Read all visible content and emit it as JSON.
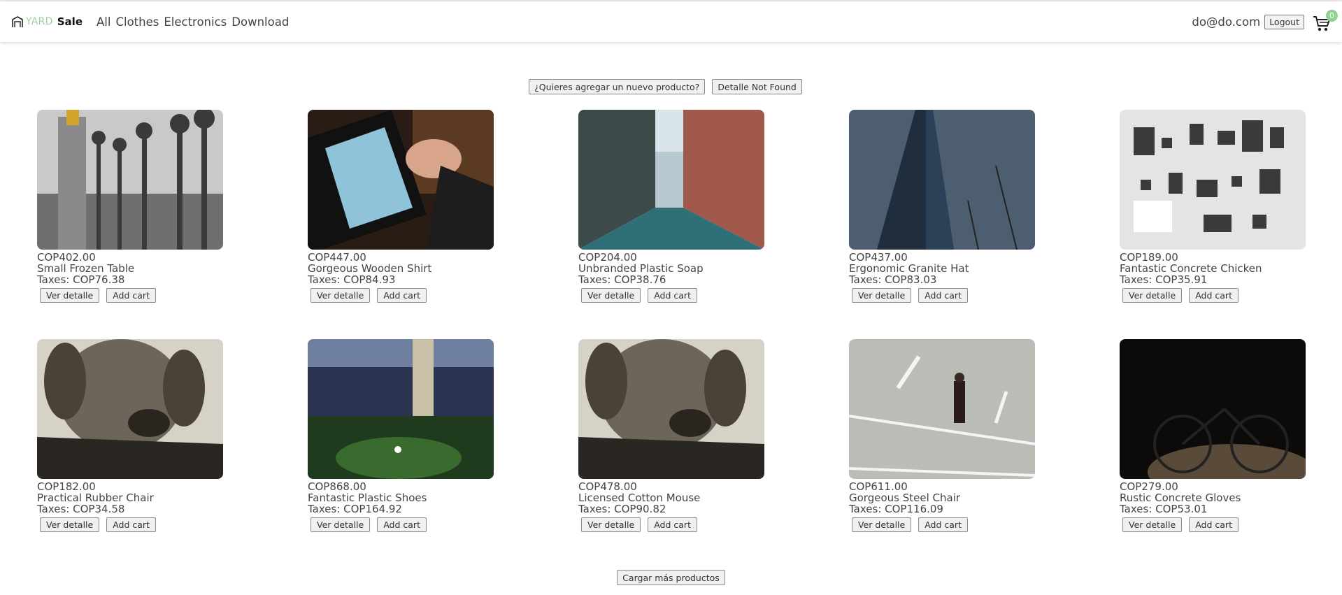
{
  "brand": {
    "yard": "YARD",
    "sale": "Sale"
  },
  "nav": {
    "all": "All",
    "clothes": "Clothes",
    "electronics": "Electronics",
    "download": "Download"
  },
  "user": {
    "email": "do@do.com",
    "logout": "Logout",
    "cart_count": "0"
  },
  "actions": {
    "add_product": "¿Quieres agregar un nuevo producto?",
    "not_found": "Detalle Not Found"
  },
  "card_buttons": {
    "detail": "Ver detalle",
    "add": "Add cart"
  },
  "products": [
    {
      "price": "COP402.00",
      "name": "Small Frozen Table",
      "taxes": "Taxes: COP76.38",
      "image": "lamp-posts-bridge"
    },
    {
      "price": "COP447.00",
      "name": "Gorgeous Wooden Shirt",
      "taxes": "Taxes: COP84.93",
      "image": "hand-on-tablet"
    },
    {
      "price": "COP204.00",
      "name": "Unbranded Plastic Soap",
      "taxes": "Taxes: COP38.76",
      "image": "city-street"
    },
    {
      "price": "COP437.00",
      "name": "Ergonomic Granite Hat",
      "taxes": "Taxes: COP83.03",
      "image": "glass-skyscraper"
    },
    {
      "price": "COP189.00",
      "name": "Fantastic Concrete Chicken",
      "taxes": "Taxes: COP35.91",
      "image": "disassembled-device-parts"
    },
    {
      "price": "COP182.00",
      "name": "Practical Rubber Chair",
      "taxes": "Taxes: COP34.58",
      "image": "dog-on-box"
    },
    {
      "price": "COP868.00",
      "name": "Fantastic Plastic Shoes",
      "taxes": "Taxes: COP164.92",
      "image": "golfer-at-night"
    },
    {
      "price": "COP478.00",
      "name": "Licensed Cotton Mouse",
      "taxes": "Taxes: COP90.82",
      "image": "dog-on-box"
    },
    {
      "price": "COP611.00",
      "name": "Gorgeous Steel Chair",
      "taxes": "Taxes: COP116.09",
      "image": "man-crossing-road"
    },
    {
      "price": "COP279.00",
      "name": "Rustic Concrete Gloves",
      "taxes": "Taxes: COP53.01",
      "image": "bicycle-in-dark"
    }
  ],
  "load_more": "Cargar más productos",
  "colors": {
    "brand_accent": "#9ccf9c",
    "cart_badge": "#8fd18f",
    "text": "#444444"
  }
}
